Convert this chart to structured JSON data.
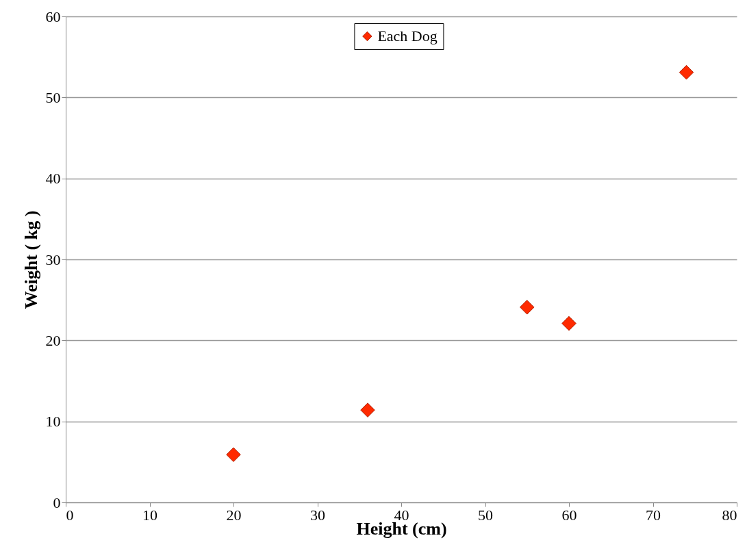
{
  "chart_data": {
    "type": "scatter",
    "xlabel": "Height (cm)",
    "ylabel": "Weight ( kg )",
    "x": [
      20,
      36,
      55,
      60,
      74
    ],
    "series": [
      {
        "name": "Each Dog",
        "color": "#ff2a00",
        "values": [
          5.9,
          11.4,
          24.1,
          22.1,
          53.1
        ]
      }
    ],
    "xlim": [
      0,
      80
    ],
    "xticks": [
      0,
      10,
      20,
      30,
      40,
      50,
      60,
      70,
      80
    ],
    "ylim": [
      0,
      60
    ],
    "yticks": [
      0,
      10,
      20,
      30,
      40,
      50,
      60
    ],
    "grid": "y",
    "legend": "top",
    "marker": "diamond"
  }
}
